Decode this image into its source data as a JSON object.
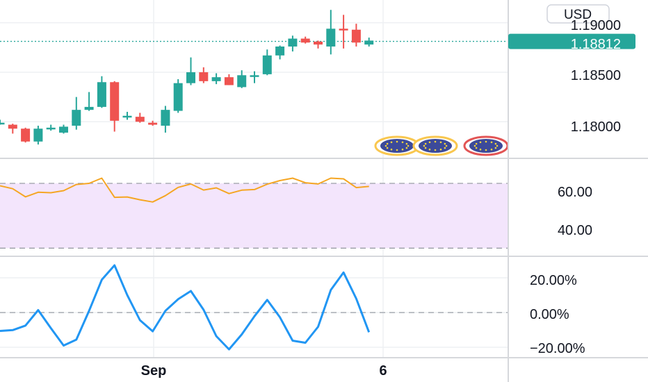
{
  "colors": {
    "up": "#26a69a",
    "down": "#ef5350",
    "rsi_line": "#f5a623",
    "rsi_band": "#f3e5fc",
    "osc_line": "#2196f3",
    "grid": "#eef0f3",
    "axis_border": "#d6d8dc",
    "dash": "#9a9ea6",
    "price_label_bg": "#26a69a",
    "event_ring": "#f9c74f",
    "event_ring_red": "#e25555",
    "event_fill": "#3c4a9a",
    "event_star": "#f5d43b"
  },
  "price_axis": {
    "currency": "USD",
    "ticks": [
      "1.19000",
      "1.18500",
      "1.18000"
    ],
    "current_price": "1.18812"
  },
  "rsi_axis": {
    "ticks": [
      "60.00",
      "40.00"
    ]
  },
  "osc_axis": {
    "ticks": [
      "20.00%",
      "0.00%",
      "−20.00%"
    ]
  },
  "time_axis": {
    "labels": [
      "Sep",
      "6"
    ]
  },
  "events": [
    "eu-flag-icon",
    "eu-flag-icon",
    "eu-flag-icon"
  ],
  "chart_data": [
    {
      "type": "candlestick",
      "pane": "price",
      "ylim": [
        1.1763,
        1.1923
      ],
      "y_ticks": [
        1.18,
        1.185,
        1.19
      ],
      "current_price": 1.18812,
      "candles": [
        {
          "o": 1.1799,
          "h": 1.1802,
          "l": 1.1797,
          "c": 1.1799
        },
        {
          "o": 1.1797,
          "h": 1.1798,
          "l": 1.1788,
          "c": 1.1793
        },
        {
          "o": 1.1793,
          "h": 1.1794,
          "l": 1.1779,
          "c": 1.178
        },
        {
          "o": 1.178,
          "h": 1.1796,
          "l": 1.1777,
          "c": 1.1793
        },
        {
          "o": 1.1793,
          "h": 1.1797,
          "l": 1.1791,
          "c": 1.1794
        },
        {
          "o": 1.1789,
          "h": 1.1797,
          "l": 1.1788,
          "c": 1.1795
        },
        {
          "o": 1.1796,
          "h": 1.1825,
          "l": 1.1792,
          "c": 1.1812
        },
        {
          "o": 1.1812,
          "h": 1.183,
          "l": 1.1811,
          "c": 1.1815
        },
        {
          "o": 1.1815,
          "h": 1.1846,
          "l": 1.1814,
          "c": 1.184
        },
        {
          "o": 1.184,
          "h": 1.1841,
          "l": 1.179,
          "c": 1.1801
        },
        {
          "o": 1.1806,
          "h": 1.181,
          "l": 1.1802,
          "c": 1.1806
        },
        {
          "o": 1.1805,
          "h": 1.1809,
          "l": 1.1799,
          "c": 1.18
        },
        {
          "o": 1.1799,
          "h": 1.1801,
          "l": 1.1796,
          "c": 1.1797
        },
        {
          "o": 1.1796,
          "h": 1.1816,
          "l": 1.1789,
          "c": 1.1812
        },
        {
          "o": 1.1811,
          "h": 1.1843,
          "l": 1.1809,
          "c": 1.1839
        },
        {
          "o": 1.1839,
          "h": 1.1865,
          "l": 1.1837,
          "c": 1.185
        },
        {
          "o": 1.185,
          "h": 1.1855,
          "l": 1.1839,
          "c": 1.1841
        },
        {
          "o": 1.1841,
          "h": 1.1849,
          "l": 1.1838,
          "c": 1.1845
        },
        {
          "o": 1.1845,
          "h": 1.1848,
          "l": 1.1837,
          "c": 1.1837
        },
        {
          "o": 1.1835,
          "h": 1.1852,
          "l": 1.1834,
          "c": 1.1847
        },
        {
          "o": 1.1846,
          "h": 1.1851,
          "l": 1.1839,
          "c": 1.1847
        },
        {
          "o": 1.1848,
          "h": 1.1873,
          "l": 1.1847,
          "c": 1.1867
        },
        {
          "o": 1.1867,
          "h": 1.1877,
          "l": 1.1863,
          "c": 1.1876
        },
        {
          "o": 1.1876,
          "h": 1.1887,
          "l": 1.1871,
          "c": 1.1884
        },
        {
          "o": 1.1884,
          "h": 1.1886,
          "l": 1.1879,
          "c": 1.188
        },
        {
          "o": 1.1881,
          "h": 1.1882,
          "l": 1.1874,
          "c": 1.1878
        },
        {
          "o": 1.1876,
          "h": 1.1913,
          "l": 1.1868,
          "c": 1.1894
        },
        {
          "o": 1.1894,
          "h": 1.1908,
          "l": 1.1874,
          "c": 1.1893
        },
        {
          "o": 1.1893,
          "h": 1.1899,
          "l": 1.1876,
          "c": 1.188
        },
        {
          "o": 1.1878,
          "h": 1.1885,
          "l": 1.1876,
          "c": 1.1882
        }
      ]
    },
    {
      "type": "line",
      "pane": "rsi",
      "ylim": [
        25,
        85
      ],
      "y_ticks": [
        40,
        60
      ],
      "band": [
        30,
        70
      ],
      "values": [
        68.5,
        66.7,
        61.7,
        64.5,
        64.2,
        65.5,
        69.3,
        70.0,
        73.2,
        61.4,
        61.6,
        59.9,
        58.5,
        62.4,
        67.5,
        69.6,
        65.9,
        67.2,
        63.7,
        65.8,
        66.2,
        69.5,
        71.7,
        73.2,
        70.4,
        69.6,
        73.2,
        72.8,
        67.4,
        68.1
      ]
    },
    {
      "type": "line",
      "pane": "oscillator",
      "unit": "%",
      "ylim": [
        -26,
        32
      ],
      "y_ticks": [
        -20,
        0,
        20
      ],
      "values": [
        -10.6,
        -10.1,
        -7.5,
        1.4,
        -9.0,
        -19.0,
        -15.6,
        1.0,
        18.9,
        27.2,
        10.1,
        -4.4,
        -10.8,
        1.0,
        7.7,
        12.4,
        1.6,
        -13.6,
        -21.2,
        -12.6,
        -2.1,
        7.3,
        -2.7,
        -16.2,
        -17.4,
        -8.2,
        13.0,
        23.1,
        8.0,
        -11.3
      ]
    }
  ]
}
